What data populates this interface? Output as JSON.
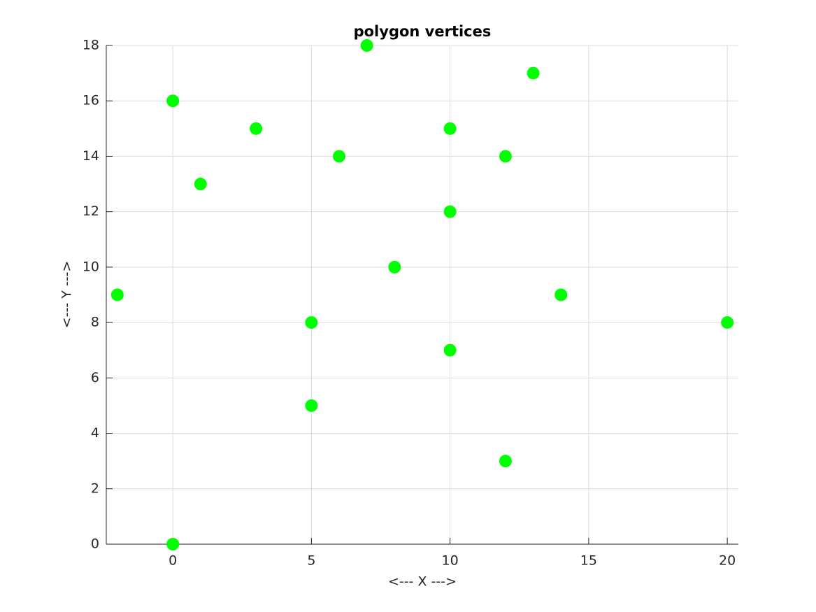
{
  "chart_data": {
    "type": "scatter",
    "title": "polygon vertices",
    "xlabel": "<--- X --->",
    "ylabel": "<--- Y --->",
    "x": [
      -2,
      0,
      0,
      1,
      3,
      5,
      5,
      6,
      7,
      8,
      10,
      10,
      10,
      12,
      12,
      13,
      14,
      20
    ],
    "y": [
      9,
      16,
      0,
      13,
      15,
      8,
      5,
      14,
      18,
      10,
      15,
      12,
      7,
      14,
      3,
      17,
      9,
      8
    ],
    "color": "#00ff00",
    "xlim": [
      -2.4,
      20.4
    ],
    "ylim": [
      0,
      18
    ],
    "xticks": [
      0,
      5,
      10,
      15,
      20
    ],
    "yticks": [
      0,
      2,
      4,
      6,
      8,
      10,
      12,
      14,
      16,
      18
    ],
    "grid": true
  }
}
